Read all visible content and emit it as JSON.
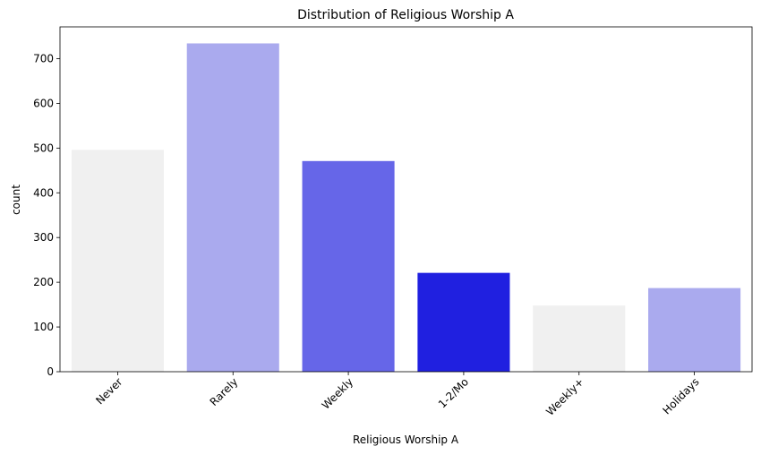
{
  "chart_data": {
    "type": "bar",
    "title": "Distribution of Religious Worship A",
    "xlabel": "Religious Worship A",
    "ylabel": "count",
    "categories": [
      "Never",
      "Rarely",
      "Weekly",
      "1-2/Mo",
      "Weekly+",
      "Holidays"
    ],
    "values": [
      496,
      734,
      471,
      221,
      148,
      187
    ],
    "colors": [
      "#f0f0f0",
      "#aaaaee",
      "#6666e8",
      "#2020e0",
      "#f0f0f0",
      "#aaaaee"
    ],
    "yticks": [
      0,
      100,
      200,
      300,
      400,
      500,
      600,
      700
    ],
    "ylim": [
      0,
      771
    ],
    "grid": false,
    "legend": "none"
  }
}
